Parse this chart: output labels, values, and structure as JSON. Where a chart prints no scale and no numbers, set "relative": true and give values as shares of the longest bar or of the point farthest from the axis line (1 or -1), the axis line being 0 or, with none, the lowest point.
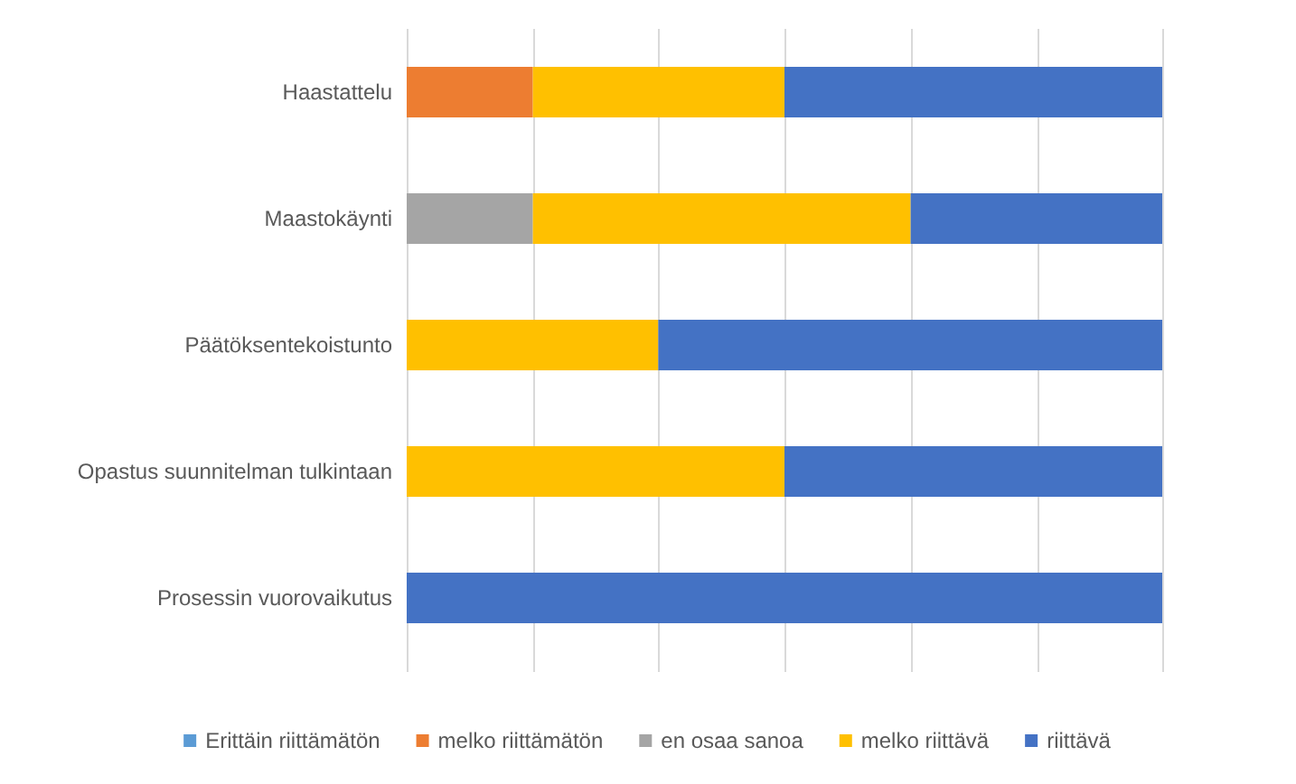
{
  "chart_data": {
    "type": "bar",
    "orientation": "horizontal",
    "stacked": true,
    "relative": true,
    "grid": "x",
    "legend": "bottom",
    "categories": [
      "Haastattelu",
      "Maastokäynti",
      "Päätöksentekoistunto",
      "Opastus suunnitelman tulkintaan",
      "Prosessin vuorovaikutus"
    ],
    "series": [
      {
        "name": "Erittäin riittämätön",
        "color": "#5b9bd5",
        "values": [
          0,
          0,
          0,
          0,
          0
        ]
      },
      {
        "name": "melko riittämätön",
        "color": "#ed7d31",
        "values": [
          0.167,
          0,
          0,
          0,
          0
        ]
      },
      {
        "name": "en osaa sanoa",
        "color": "#a5a5a5",
        "values": [
          0,
          0.167,
          0,
          0,
          0
        ]
      },
      {
        "name": "melko riittävä",
        "color": "#ffc000",
        "values": [
          0.333,
          0.5,
          0.333,
          0.5,
          0
        ]
      },
      {
        "name": "riittävä",
        "color": "#4472c4",
        "values": [
          0.5,
          0.333,
          0.667,
          0.5,
          1
        ]
      }
    ]
  }
}
